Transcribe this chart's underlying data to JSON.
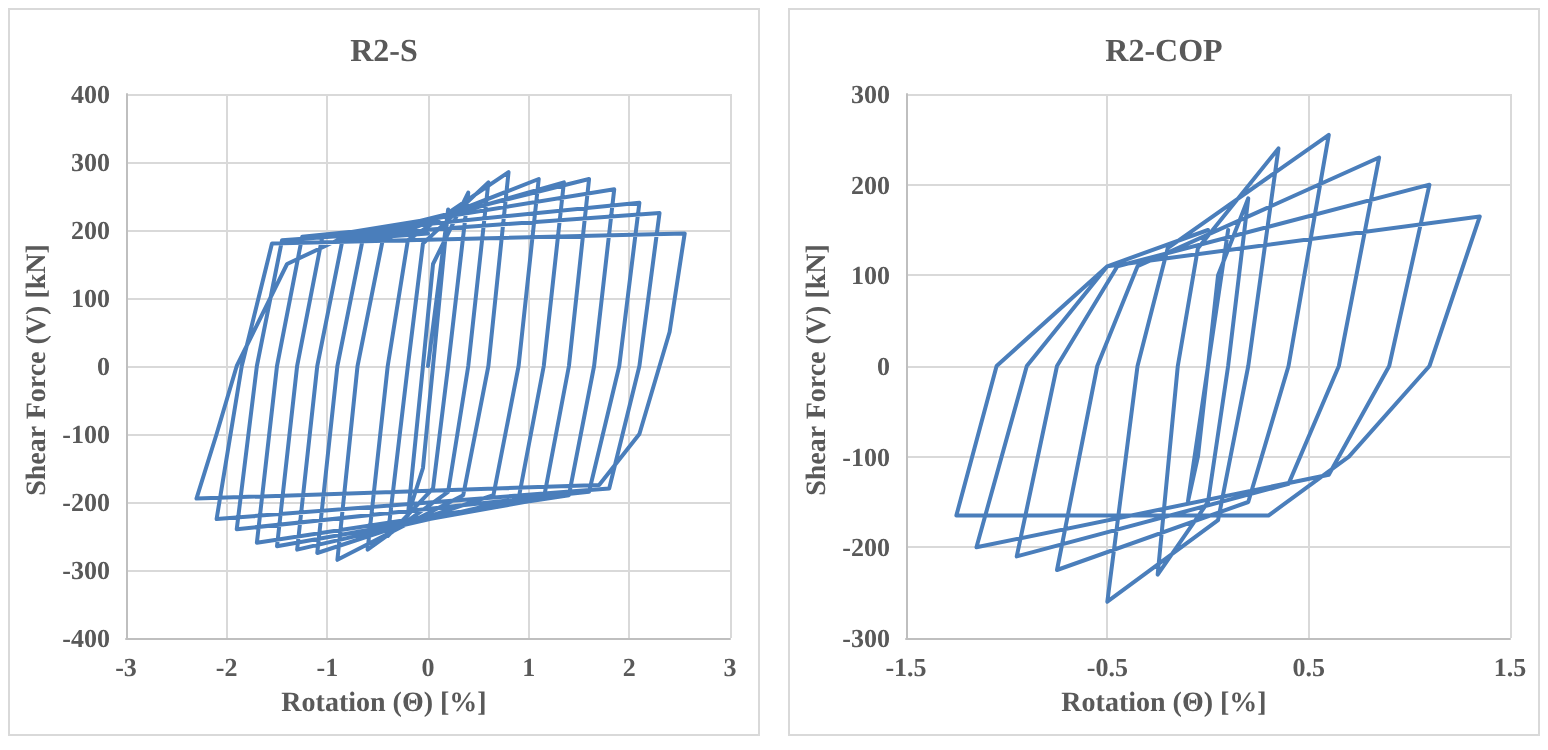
{
  "chart_data": [
    {
      "type": "line",
      "title": "R2-S",
      "xlabel": "Rotation (Θ) [%]",
      "ylabel": "Shear Force (V) [kN]",
      "xlim": [
        -3,
        3
      ],
      "xticks": [
        -3,
        -2,
        -1,
        0,
        1,
        2,
        3
      ],
      "ylim": [
        -400,
        400
      ],
      "yticks": [
        -400,
        -300,
        -200,
        -100,
        0,
        100,
        200,
        300,
        400
      ],
      "grid": true,
      "marker": "none",
      "line_style": "solid",
      "series": [
        {
          "color": "#4a7ebb",
          "x": [
            0,
            0.2,
            0.05,
            -0.05,
            -0.2,
            -0.05,
            0.05,
            0.4,
            0.2,
            0.05,
            -0.4,
            -0.2,
            -0.05,
            0.6,
            0.4,
            0.2,
            -0.6,
            -0.4,
            -0.2,
            0.8,
            0.6,
            0.35,
            -0.9,
            -0.7,
            -0.45,
            1.1,
            0.9,
            0.65,
            -1.1,
            -0.9,
            -0.65,
            1.35,
            1.15,
            0.9,
            -1.3,
            -1.1,
            -0.85,
            1.6,
            1.4,
            1.15,
            -1.5,
            -1.3,
            -1.05,
            1.85,
            1.65,
            1.4,
            -1.7,
            -1.5,
            -1.25,
            2.1,
            1.9,
            1.6,
            -1.9,
            -1.7,
            -1.45,
            2.3,
            2.1,
            1.8,
            -2.1,
            -1.85,
            -1.55,
            2.55,
            2.4,
            2.1,
            1.7,
            -2.3,
            -2.1,
            -1.9,
            -1.4,
            -0.9,
            0
          ],
          "values": [
            0,
            230,
            0,
            -150,
            -220,
            0,
            150,
            255,
            0,
            -180,
            -250,
            0,
            180,
            270,
            0,
            -185,
            -270,
            0,
            185,
            285,
            0,
            -190,
            -285,
            0,
            185,
            275,
            0,
            -190,
            -275,
            0,
            185,
            270,
            0,
            -195,
            -270,
            0,
            185,
            275,
            0,
            -195,
            -265,
            0,
            190,
            260,
            0,
            -190,
            -260,
            0,
            190,
            240,
            0,
            -185,
            -240,
            0,
            185,
            225,
            0,
            -180,
            -225,
            0,
            180,
            195,
            50,
            -100,
            -175,
            -195,
            -100,
            0,
            150,
            185,
            195
          ]
        }
      ]
    },
    {
      "type": "line",
      "title": "R2-COP",
      "xlabel": "Rotation (Θ) [%]",
      "ylabel": "Shear Force (V) [kN]",
      "xlim": [
        -1.5,
        1.5
      ],
      "xticks": [
        -1.5,
        -0.5,
        0.5,
        1.5
      ],
      "ylim": [
        -300,
        300
      ],
      "yticks": [
        -300,
        -200,
        -100,
        0,
        100,
        200,
        300
      ],
      "grid": true,
      "marker": "none",
      "line_style": "solid",
      "series": [
        {
          "color": "#4a7ebb",
          "x": [
            0,
            0.1,
            0,
            -0.05,
            -0.1,
            0,
            0.05,
            0.2,
            0.1,
            0,
            -0.25,
            -0.15,
            -0.05,
            0.35,
            0.2,
            0.05,
            -0.5,
            -0.35,
            -0.2,
            0.6,
            0.4,
            0.2,
            -0.75,
            -0.55,
            -0.35,
            0.85,
            0.65,
            0.4,
            -0.95,
            -0.75,
            -0.45,
            1.1,
            0.9,
            0.6,
            -1.15,
            -0.9,
            -0.5,
            1.35,
            1.1,
            0.7,
            0.3,
            -1.25,
            -1.05,
            -0.5,
            0
          ],
          "values": [
            0,
            150,
            0,
            -100,
            -150,
            0,
            100,
            185,
            0,
            -150,
            -230,
            0,
            130,
            240,
            0,
            -170,
            -260,
            0,
            130,
            255,
            0,
            -150,
            -225,
            0,
            110,
            230,
            0,
            -130,
            -210,
            0,
            110,
            200,
            0,
            -120,
            -200,
            0,
            110,
            165,
            0,
            -100,
            -165,
            -165,
            0,
            110,
            150
          ]
        }
      ]
    }
  ]
}
